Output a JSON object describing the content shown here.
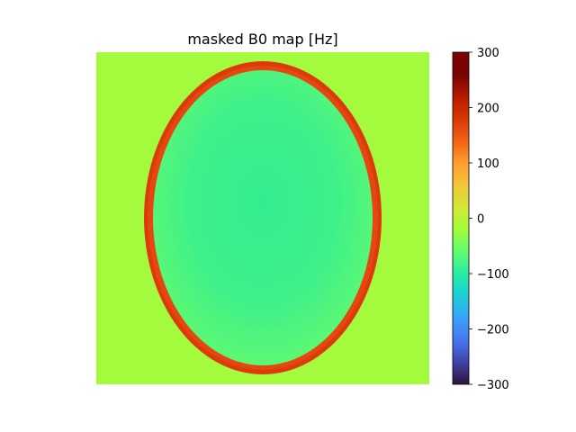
{
  "chart_data": {
    "type": "heatmap",
    "title": "masked B0 map [Hz]",
    "xlabel": "",
    "ylabel": "",
    "colorbar": {
      "colormap": "turbo",
      "range": [
        -300,
        300
      ],
      "ticks": [
        300,
        200,
        100,
        0,
        -100,
        -200,
        -300
      ],
      "tick_labels": [
        "300",
        "200",
        "100",
        "0",
        "−100",
        "−200",
        "−300"
      ]
    },
    "image_content": {
      "background_value_hz": 0,
      "background_color": "#a4fa3c",
      "interior_center_value_hz": -90,
      "interior_edge_value_hz": -55,
      "rim_value_hz": 240,
      "rim_color": "#dc3a0c",
      "shape": "ellipse"
    },
    "axes_visible": false
  }
}
